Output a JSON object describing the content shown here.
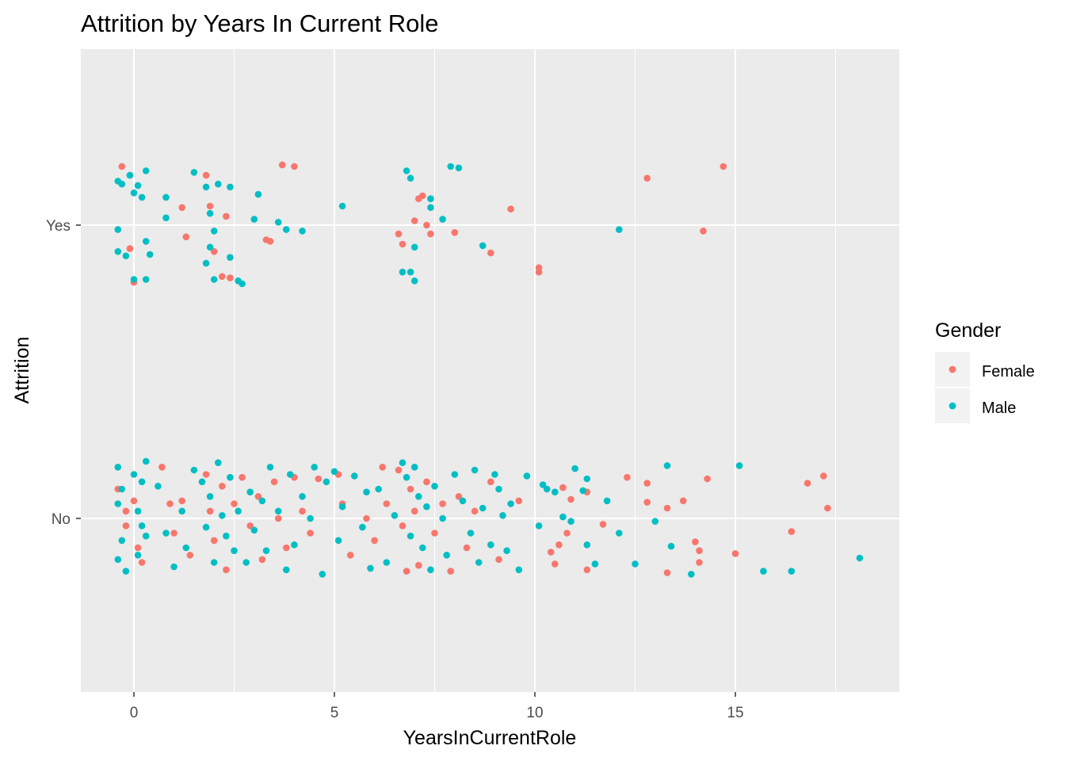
{
  "chart_data": {
    "type": "scatter",
    "title": "Attrition by Years In Current Role",
    "xlabel": "YearsInCurrentRole",
    "ylabel": "Attrition",
    "xlim": [
      -1.3,
      19.1
    ],
    "x_ticks": [
      0,
      5,
      10,
      15
    ],
    "x_minor_ticks": [
      2.5,
      7.5,
      12.5,
      17.5
    ],
    "y_categories": [
      "No",
      "Yes"
    ],
    "y_jitter_note": "",
    "grid": true,
    "background": "#ebebeb",
    "legend": {
      "title": "Gender",
      "placement": "right",
      "entries": [
        {
          "name": "Female",
          "color": "#f8766d"
        },
        {
          "name": "Male",
          "color": "#00bfc4"
        }
      ]
    },
    "series": [
      {
        "name": "Female",
        "color": "#f8766d",
        "points": [
          [
            -0.3,
            2.4
          ],
          [
            0.0,
            1.61
          ],
          [
            -0.1,
            1.84
          ],
          [
            1.2,
            2.12
          ],
          [
            1.3,
            1.92
          ],
          [
            1.8,
            2.34
          ],
          [
            1.9,
            2.13
          ],
          [
            2.0,
            1.82
          ],
          [
            2.2,
            1.65
          ],
          [
            2.3,
            2.06
          ],
          [
            2.4,
            1.64
          ],
          [
            3.3,
            1.9
          ],
          [
            3.4,
            1.89
          ],
          [
            3.7,
            2.41
          ],
          [
            4.0,
            2.4
          ],
          [
            6.6,
            1.94
          ],
          [
            6.7,
            1.87
          ],
          [
            7.0,
            2.03
          ],
          [
            7.1,
            2.18
          ],
          [
            7.2,
            2.2
          ],
          [
            7.3,
            2.0
          ],
          [
            7.4,
            1.94
          ],
          [
            8.0,
            1.95
          ],
          [
            8.9,
            1.81
          ],
          [
            9.4,
            2.11
          ],
          [
            10.1,
            1.71
          ],
          [
            10.1,
            1.68
          ],
          [
            12.8,
            2.32
          ],
          [
            14.2,
            1.96
          ],
          [
            14.7,
            2.4
          ],
          [
            -0.4,
            0.2
          ],
          [
            -0.2,
            0.05
          ],
          [
            0.0,
            0.12
          ],
          [
            0.1,
            -0.2
          ],
          [
            -0.2,
            -0.05
          ],
          [
            0.2,
            -0.3
          ],
          [
            0.7,
            0.35
          ],
          [
            0.9,
            0.1
          ],
          [
            1.0,
            -0.1
          ],
          [
            1.2,
            0.12
          ],
          [
            1.4,
            -0.25
          ],
          [
            1.8,
            0.3
          ],
          [
            1.9,
            0.05
          ],
          [
            2.0,
            -0.15
          ],
          [
            2.2,
            0.22
          ],
          [
            2.3,
            -0.35
          ],
          [
            2.5,
            0.1
          ],
          [
            2.7,
            0.28
          ],
          [
            2.9,
            -0.05
          ],
          [
            3.1,
            0.15
          ],
          [
            3.2,
            -0.28
          ],
          [
            3.5,
            0.25
          ],
          [
            3.6,
            0.0
          ],
          [
            3.8,
            -0.2
          ],
          [
            4.0,
            0.28
          ],
          [
            4.2,
            0.05
          ],
          [
            4.4,
            -0.1
          ],
          [
            4.6,
            0.27
          ],
          [
            5.1,
            0.3
          ],
          [
            5.2,
            0.1
          ],
          [
            5.4,
            -0.25
          ],
          [
            5.8,
            0.0
          ],
          [
            6.0,
            -0.15
          ],
          [
            6.2,
            0.35
          ],
          [
            6.3,
            0.1
          ],
          [
            6.6,
            0.33
          ],
          [
            6.7,
            -0.05
          ],
          [
            6.8,
            -0.36
          ],
          [
            6.9,
            0.2
          ],
          [
            7.0,
            0.05
          ],
          [
            7.1,
            -0.32
          ],
          [
            7.3,
            0.25
          ],
          [
            7.5,
            -0.1
          ],
          [
            7.7,
            0.1
          ],
          [
            7.9,
            -0.36
          ],
          [
            8.1,
            0.15
          ],
          [
            8.3,
            -0.2
          ],
          [
            8.5,
            0.05
          ],
          [
            8.9,
            0.25
          ],
          [
            9.1,
            -0.28
          ],
          [
            9.6,
            0.12
          ],
          [
            10.4,
            -0.23
          ],
          [
            10.5,
            -0.31
          ],
          [
            10.6,
            -0.18
          ],
          [
            10.7,
            0.21
          ],
          [
            10.8,
            -0.1
          ],
          [
            10.9,
            0.13
          ],
          [
            11.3,
            0.18
          ],
          [
            11.3,
            -0.35
          ],
          [
            11.7,
            -0.04
          ],
          [
            12.3,
            0.28
          ],
          [
            12.8,
            0.24
          ],
          [
            12.8,
            0.11
          ],
          [
            13.3,
            0.07
          ],
          [
            13.3,
            -0.37
          ],
          [
            13.7,
            0.12
          ],
          [
            14.0,
            -0.16
          ],
          [
            14.1,
            -0.22
          ],
          [
            14.1,
            -0.3
          ],
          [
            14.3,
            0.27
          ],
          [
            15.0,
            -0.24
          ],
          [
            16.4,
            -0.09
          ],
          [
            16.8,
            0.24
          ],
          [
            17.2,
            0.29
          ],
          [
            17.3,
            0.07
          ]
        ]
      },
      {
        "name": "Male",
        "color": "#00bfc4",
        "points": [
          [
            -0.3,
            2.28
          ],
          [
            -0.1,
            2.34
          ],
          [
            0.3,
            2.37
          ],
          [
            0.1,
            2.27
          ],
          [
            -0.4,
            2.3
          ],
          [
            0.0,
            2.22
          ],
          [
            0.2,
            2.19
          ],
          [
            -0.4,
            1.97
          ],
          [
            -0.4,
            1.82
          ],
          [
            -0.2,
            1.79
          ],
          [
            0.3,
            1.89
          ],
          [
            0.4,
            1.8
          ],
          [
            0.0,
            1.63
          ],
          [
            0.3,
            1.63
          ],
          [
            0.8,
            2.19
          ],
          [
            0.8,
            2.05
          ],
          [
            1.5,
            2.36
          ],
          [
            1.8,
            2.26
          ],
          [
            1.9,
            2.08
          ],
          [
            2.1,
            2.28
          ],
          [
            2.4,
            2.26
          ],
          [
            2.0,
            1.96
          ],
          [
            1.9,
            1.85
          ],
          [
            2.4,
            1.78
          ],
          [
            1.8,
            1.74
          ],
          [
            2.0,
            1.63
          ],
          [
            2.6,
            1.62
          ],
          [
            2.7,
            1.6
          ],
          [
            3.1,
            2.21
          ],
          [
            3.0,
            2.04
          ],
          [
            3.6,
            2.02
          ],
          [
            3.8,
            1.97
          ],
          [
            4.2,
            1.96
          ],
          [
            5.2,
            2.13
          ],
          [
            6.8,
            2.37
          ],
          [
            6.9,
            2.32
          ],
          [
            7.4,
            2.18
          ],
          [
            7.4,
            2.12
          ],
          [
            7.0,
            1.85
          ],
          [
            6.7,
            1.68
          ],
          [
            6.9,
            1.68
          ],
          [
            7.0,
            1.62
          ],
          [
            7.9,
            2.4
          ],
          [
            8.1,
            2.39
          ],
          [
            7.7,
            2.04
          ],
          [
            8.7,
            1.86
          ],
          [
            12.1,
            1.97
          ],
          [
            -0.4,
            0.35
          ],
          [
            -0.3,
            0.2
          ],
          [
            -0.4,
            0.1
          ],
          [
            -0.3,
            -0.15
          ],
          [
            -0.4,
            -0.28
          ],
          [
            -0.2,
            -0.36
          ],
          [
            0.0,
            0.3
          ],
          [
            0.2,
            0.25
          ],
          [
            0.1,
            0.05
          ],
          [
            0.2,
            -0.05
          ],
          [
            0.3,
            -0.12
          ],
          [
            0.1,
            -0.25
          ],
          [
            0.3,
            0.39
          ],
          [
            0.6,
            0.22
          ],
          [
            0.8,
            -0.1
          ],
          [
            1.0,
            -0.33
          ],
          [
            1.2,
            0.05
          ],
          [
            1.3,
            -0.2
          ],
          [
            1.5,
            0.33
          ],
          [
            1.7,
            0.25
          ],
          [
            1.8,
            -0.06
          ],
          [
            1.9,
            0.15
          ],
          [
            2.0,
            -0.3
          ],
          [
            2.1,
            0.38
          ],
          [
            2.2,
            0.02
          ],
          [
            2.3,
            -0.12
          ],
          [
            2.4,
            0.28
          ],
          [
            2.5,
            -0.22
          ],
          [
            2.6,
            0.05
          ],
          [
            2.8,
            -0.3
          ],
          [
            2.9,
            0.18
          ],
          [
            3.0,
            -0.08
          ],
          [
            3.2,
            0.12
          ],
          [
            3.3,
            -0.22
          ],
          [
            3.4,
            0.35
          ],
          [
            3.6,
            0.05
          ],
          [
            3.8,
            -0.35
          ],
          [
            3.9,
            0.3
          ],
          [
            4.0,
            -0.18
          ],
          [
            4.2,
            0.15
          ],
          [
            4.4,
            0.0
          ],
          [
            4.5,
            0.35
          ],
          [
            4.7,
            -0.38
          ],
          [
            4.8,
            0.25
          ],
          [
            5.0,
            0.32
          ],
          [
            5.1,
            -0.15
          ],
          [
            5.2,
            0.08
          ],
          [
            5.5,
            0.29
          ],
          [
            5.7,
            -0.06
          ],
          [
            5.8,
            0.18
          ],
          [
            5.9,
            -0.34
          ],
          [
            6.1,
            0.2
          ],
          [
            6.3,
            -0.3
          ],
          [
            6.5,
            0.02
          ],
          [
            6.7,
            0.38
          ],
          [
            6.8,
            0.28
          ],
          [
            6.9,
            -0.12
          ],
          [
            7.0,
            0.35
          ],
          [
            7.1,
            0.15
          ],
          [
            7.2,
            -0.2
          ],
          [
            7.3,
            0.08
          ],
          [
            7.4,
            -0.35
          ],
          [
            7.5,
            0.22
          ],
          [
            7.7,
            0.0
          ],
          [
            7.8,
            -0.25
          ],
          [
            8.0,
            0.3
          ],
          [
            8.2,
            0.12
          ],
          [
            8.4,
            -0.1
          ],
          [
            8.5,
            0.33
          ],
          [
            8.6,
            -0.3
          ],
          [
            8.7,
            0.07
          ],
          [
            8.9,
            -0.18
          ],
          [
            9.0,
            0.3
          ],
          [
            9.1,
            0.2
          ],
          [
            9.2,
            0.02
          ],
          [
            9.3,
            -0.22
          ],
          [
            9.4,
            0.1
          ],
          [
            9.6,
            -0.35
          ],
          [
            9.8,
            0.29
          ],
          [
            10.1,
            -0.05
          ],
          [
            10.2,
            0.23
          ],
          [
            10.3,
            0.2
          ],
          [
            10.5,
            0.18
          ],
          [
            10.7,
            0.01
          ],
          [
            10.9,
            -0.02
          ],
          [
            11.0,
            0.34
          ],
          [
            11.2,
            0.19
          ],
          [
            11.3,
            -0.18
          ],
          [
            11.3,
            0.27
          ],
          [
            11.5,
            -0.31
          ],
          [
            11.8,
            0.12
          ],
          [
            12.1,
            -0.1
          ],
          [
            12.5,
            -0.31
          ],
          [
            13.0,
            -0.02
          ],
          [
            13.3,
            0.36
          ],
          [
            13.4,
            -0.19
          ],
          [
            13.9,
            -0.38
          ],
          [
            15.1,
            0.36
          ],
          [
            15.7,
            -0.36
          ],
          [
            16.4,
            -0.36
          ],
          [
            18.1,
            -0.27
          ]
        ]
      }
    ]
  }
}
